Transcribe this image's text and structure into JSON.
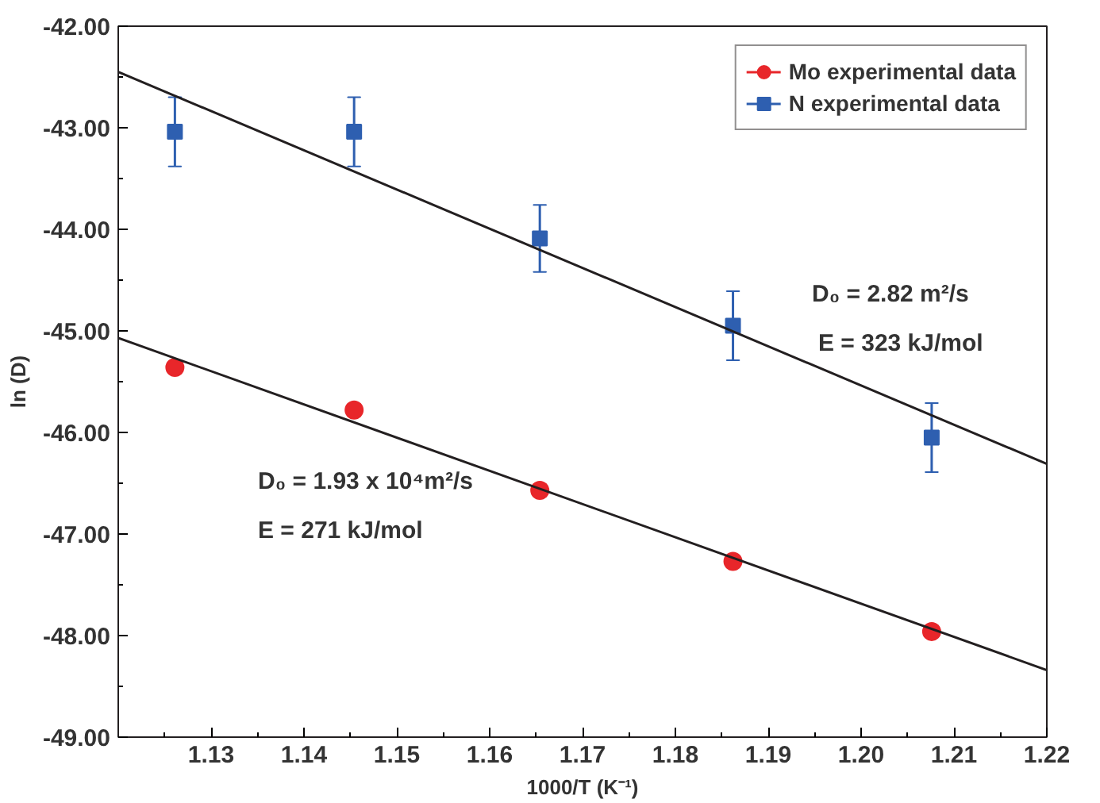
{
  "chart_data": {
    "type": "scatter",
    "xlabel": "1000/T (K⁻¹)",
    "ylabel": "ln (D)",
    "xlim": [
      1.12,
      1.22
    ],
    "ylim": [
      -49,
      -42
    ],
    "xticks": [
      {
        "value": 1.12,
        "label": null
      },
      {
        "value": 1.13,
        "label": "1.13"
      },
      {
        "value": 1.14,
        "label": "1.14"
      },
      {
        "value": 1.15,
        "label": "1.15"
      },
      {
        "value": 1.16,
        "label": "1.16"
      },
      {
        "value": 1.17,
        "label": "1.17"
      },
      {
        "value": 1.18,
        "label": "1.18"
      },
      {
        "value": 1.19,
        "label": "1.19"
      },
      {
        "value": 1.2,
        "label": "1.20"
      },
      {
        "value": 1.21,
        "label": "1.21"
      },
      {
        "value": 1.22,
        "label": "1.22"
      }
    ],
    "yticks": [
      {
        "value": -49,
        "label": "-49.00"
      },
      {
        "value": -48,
        "label": "-48.00"
      },
      {
        "value": -47,
        "label": "-47.00"
      },
      {
        "value": -46,
        "label": "-46.00"
      },
      {
        "value": -45,
        "label": "-45.00"
      },
      {
        "value": -44,
        "label": "-44.00"
      },
      {
        "value": -43,
        "label": "-43.00"
      },
      {
        "value": -42,
        "label": "-42.00"
      }
    ],
    "grid": false,
    "legend": "top right",
    "series": [
      {
        "name": "Mo experimental data",
        "color": "#e8262a",
        "marker": "circle",
        "x": [
          1.1261,
          1.1454,
          1.1654,
          1.1862,
          1.2076
        ],
        "values": [
          -45.36,
          -45.78,
          -46.57,
          -47.27,
          -47.96
        ],
        "errors": [
          0.06,
          0.06,
          0.06,
          0.06,
          0.06
        ]
      },
      {
        "name": "N experimental data",
        "color": "#2e5fb0",
        "marker": "square",
        "x": [
          1.1261,
          1.1454,
          1.1654,
          1.1862,
          1.2076
        ],
        "values": [
          -43.04,
          -43.04,
          -44.09,
          -44.95,
          -46.05
        ],
        "errors": [
          0.34,
          0.34,
          0.33,
          0.34,
          0.34
        ]
      },
      {
        "type": "line",
        "color": "#231f20",
        "x": [
          1.12,
          1.22
        ],
        "values": [
          -45.07,
          -48.34
        ]
      },
      {
        "type": "line",
        "color": "#231f20",
        "x": [
          1.12,
          1.22
        ],
        "values": [
          -42.45,
          -46.31
        ]
      }
    ],
    "annotations": [
      "D₀ = 2.82 m²/s",
      "E = 323 kJ/mol",
      "D₀ = 1.93 x 10⁴m²/s",
      "E = 271 kJ/mol"
    ]
  }
}
